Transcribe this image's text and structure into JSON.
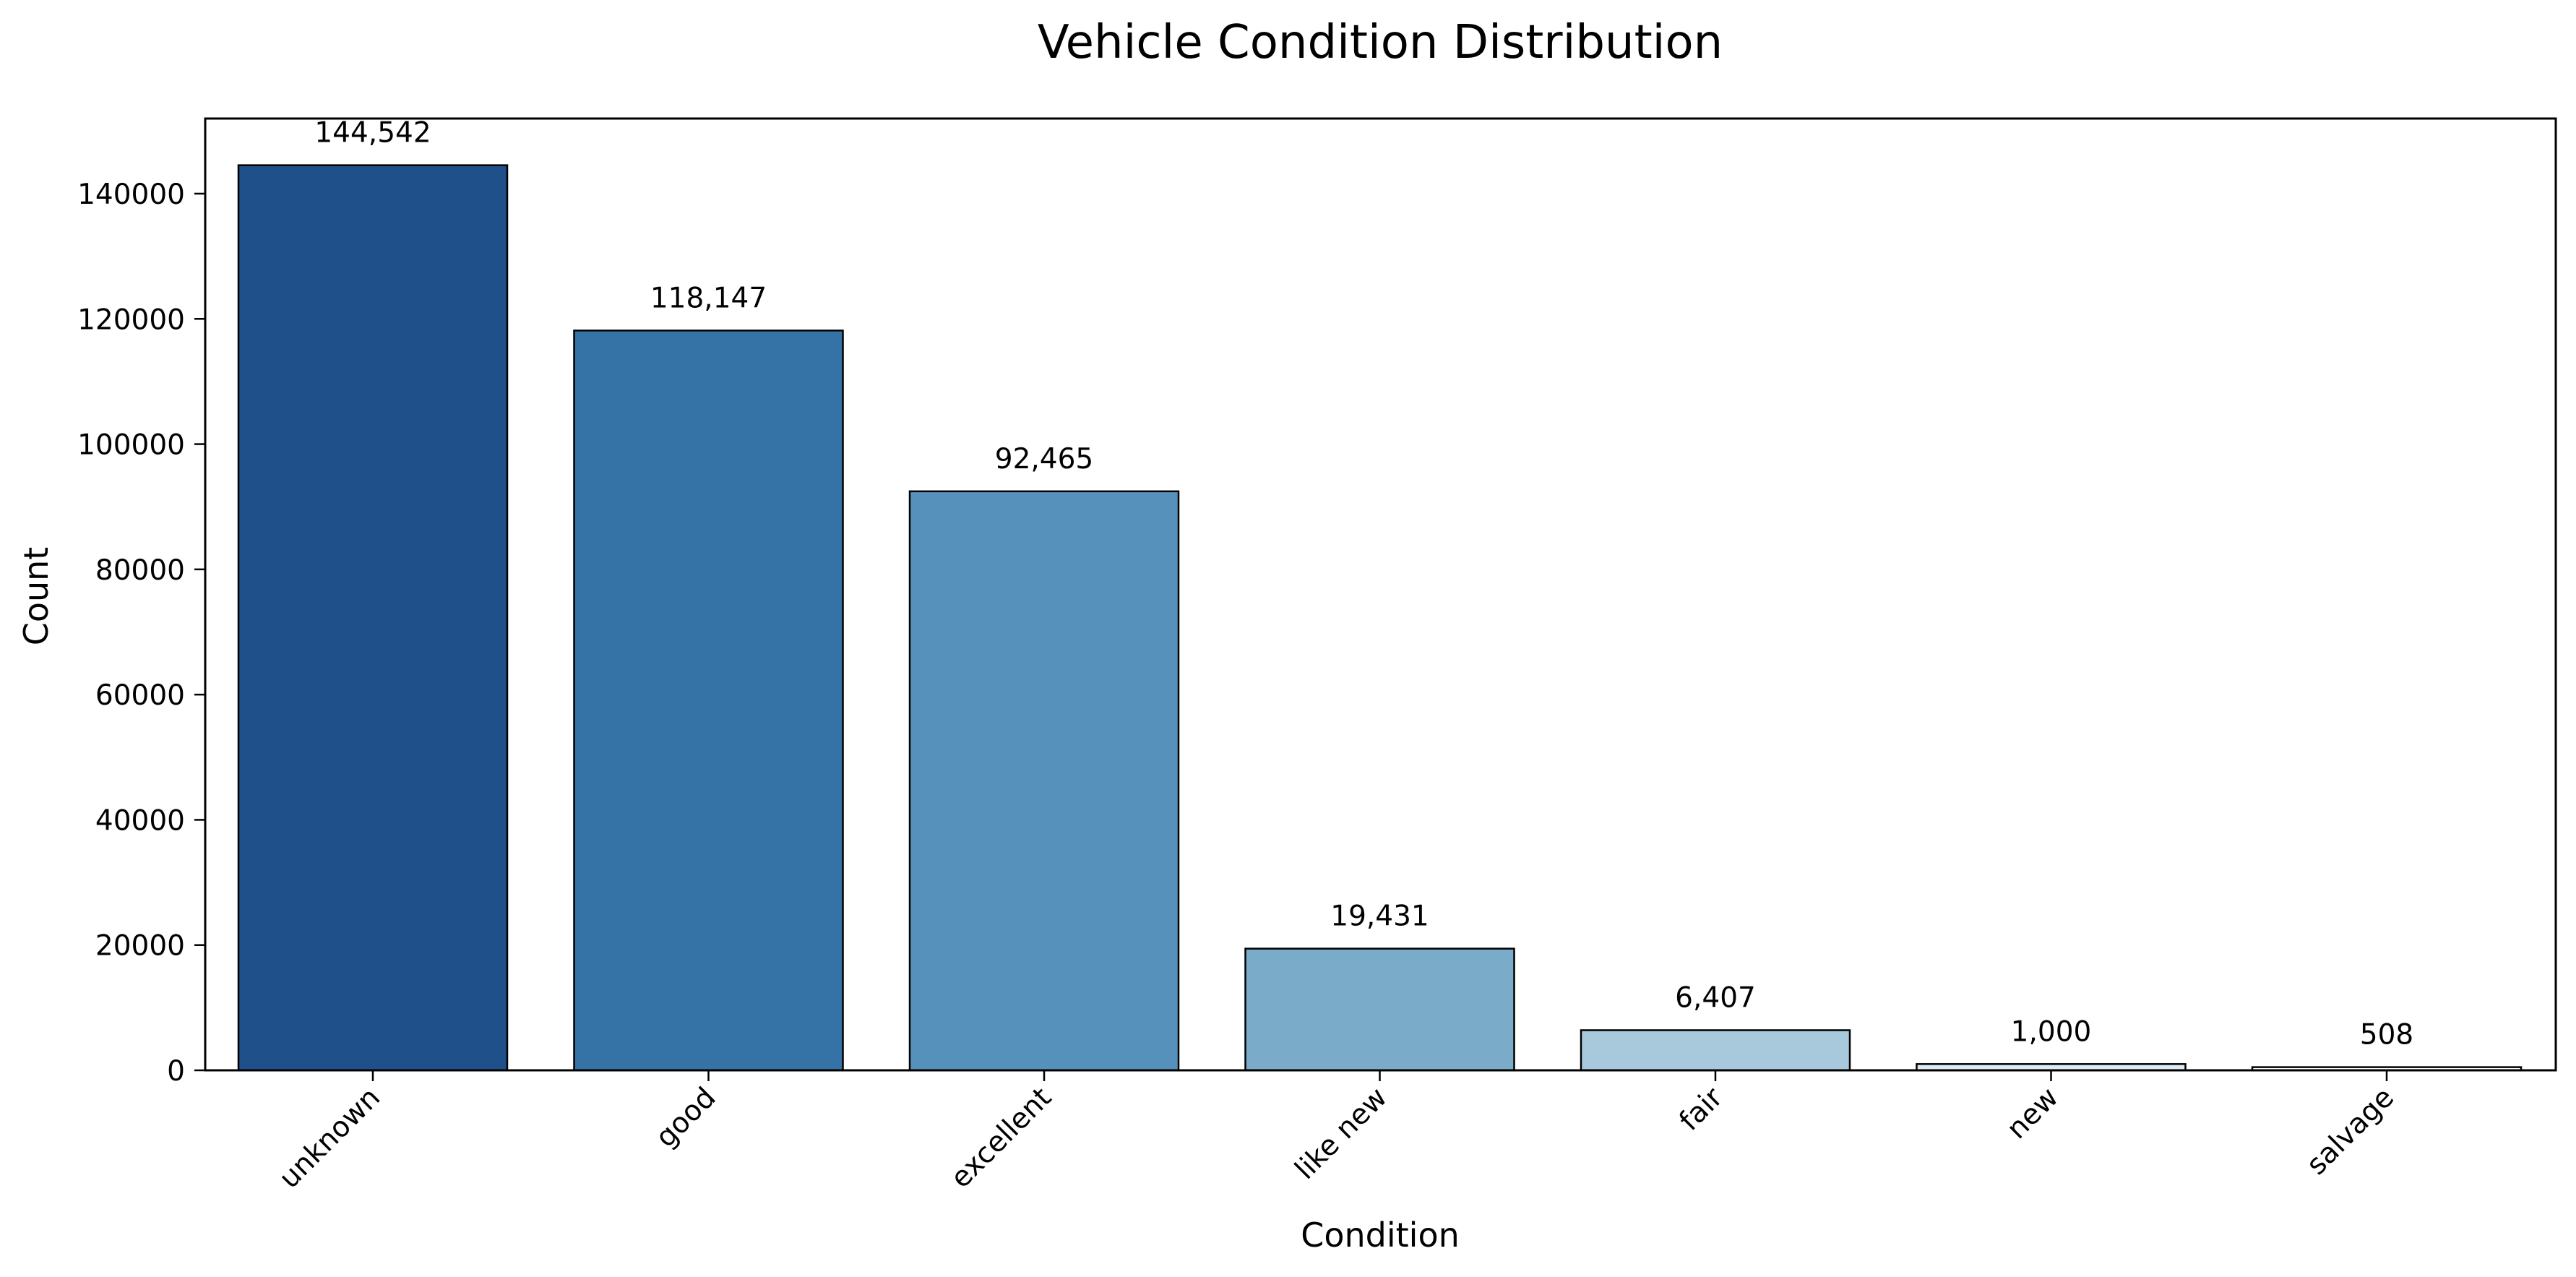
{
  "chart_data": {
    "type": "bar",
    "title": "Vehicle Condition Distribution",
    "xlabel": "Condition",
    "ylabel": "Count",
    "categories": [
      "unknown",
      "good",
      "excellent",
      "like new",
      "fair",
      "new",
      "salvage"
    ],
    "values": [
      144542,
      118147,
      92465,
      19431,
      6407,
      1000,
      508
    ],
    "data_labels": [
      "144,542",
      "118,147",
      "92,465",
      "19,431",
      "6,407",
      "1,000",
      "508"
    ],
    "colors": [
      "#1f5089",
      "#3572a5",
      "#5591ba",
      "#7aabc9",
      "#a8c8dc",
      "#dfeaf3",
      "#f4f8fc"
    ],
    "ylim": [
      0,
      152000
    ],
    "yticks": [
      0,
      20000,
      40000,
      60000,
      80000,
      100000,
      120000,
      140000
    ],
    "ytick_labels": [
      "0",
      "20000",
      "40000",
      "60000",
      "80000",
      "100000",
      "120000",
      "140000"
    ],
    "grid": false,
    "legend": "none"
  }
}
